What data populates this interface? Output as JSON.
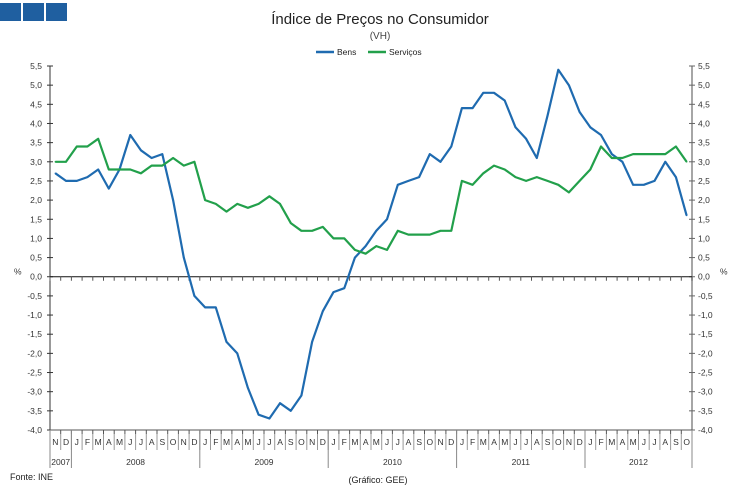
{
  "chart_data": {
    "type": "line",
    "title": "Índice de Preços no Consumidor",
    "subtitle": "(VH)",
    "ylabel": "%",
    "ylim": [
      -4.0,
      5.5
    ],
    "yticks": [
      "5,5",
      "5,0",
      "4,5",
      "4,0",
      "3,5",
      "3,0",
      "2,5",
      "2,0",
      "1,5",
      "1,0",
      "0,5",
      "0,0",
      "-0,5",
      "-1,0",
      "-1,5",
      "-2,0",
      "-2,5",
      "-3,0",
      "-3,5",
      "-4,0"
    ],
    "months": [
      "N",
      "D",
      "J",
      "F",
      "M",
      "A",
      "M",
      "J",
      "J",
      "A",
      "S",
      "O",
      "N",
      "D",
      "J",
      "F",
      "M",
      "A",
      "M",
      "J",
      "J",
      "A",
      "S",
      "O",
      "N",
      "D",
      "J",
      "F",
      "M",
      "A",
      "M",
      "J",
      "J",
      "A",
      "S",
      "O",
      "N",
      "D",
      "J",
      "F",
      "M",
      "A",
      "M",
      "J",
      "J",
      "A",
      "S",
      "O",
      "N",
      "D",
      "J",
      "F",
      "M",
      "A",
      "M",
      "J",
      "J",
      "A",
      "S",
      "O"
    ],
    "years": [
      {
        "label": "2007",
        "months": 2
      },
      {
        "label": "2008",
        "months": 12
      },
      {
        "label": "2009",
        "months": 12
      },
      {
        "label": "2010",
        "months": 12
      },
      {
        "label": "2011",
        "months": 12
      },
      {
        "label": "2012",
        "months": 10
      }
    ],
    "legend_position": "top-center",
    "series": [
      {
        "name": "Bens",
        "color": "#1f6bb0",
        "values": [
          2.7,
          2.5,
          2.5,
          2.6,
          2.8,
          2.3,
          2.8,
          3.7,
          3.3,
          3.1,
          3.2,
          2.0,
          0.5,
          -0.5,
          -0.8,
          -0.8,
          -1.7,
          -2.0,
          -2.9,
          -3.6,
          -3.7,
          -3.3,
          -3.5,
          -3.1,
          -1.7,
          -0.9,
          -0.4,
          -0.3,
          0.5,
          0.8,
          1.2,
          1.5,
          2.4,
          2.5,
          2.6,
          3.2,
          3.0,
          3.4,
          4.4,
          4.4,
          4.8,
          4.8,
          4.6,
          3.9,
          3.6,
          3.1,
          4.2,
          5.4,
          5.0,
          4.3,
          3.9,
          3.7,
          3.2,
          3.0,
          2.4,
          2.4,
          2.5,
          3.0,
          2.6,
          1.6
        ]
      },
      {
        "name": "Serviços",
        "color": "#22a04b",
        "values": [
          3.0,
          3.0,
          3.4,
          3.4,
          3.6,
          2.8,
          2.8,
          2.8,
          2.7,
          2.9,
          2.9,
          3.1,
          2.9,
          3.0,
          2.0,
          1.9,
          1.7,
          1.9,
          1.8,
          1.9,
          2.1,
          1.9,
          1.4,
          1.2,
          1.2,
          1.3,
          1.0,
          1.0,
          0.7,
          0.6,
          0.8,
          0.7,
          1.2,
          1.1,
          1.1,
          1.1,
          1.2,
          1.2,
          2.5,
          2.4,
          2.7,
          2.9,
          2.8,
          2.6,
          2.5,
          2.6,
          2.5,
          2.4,
          2.2,
          2.5,
          2.8,
          3.4,
          3.1,
          3.1,
          3.2,
          3.2,
          3.2,
          3.2,
          3.4,
          3.0
        ]
      }
    ]
  },
  "footer": {
    "source": "Fonte: INE",
    "credit": "(Gráfico: GEE)"
  }
}
